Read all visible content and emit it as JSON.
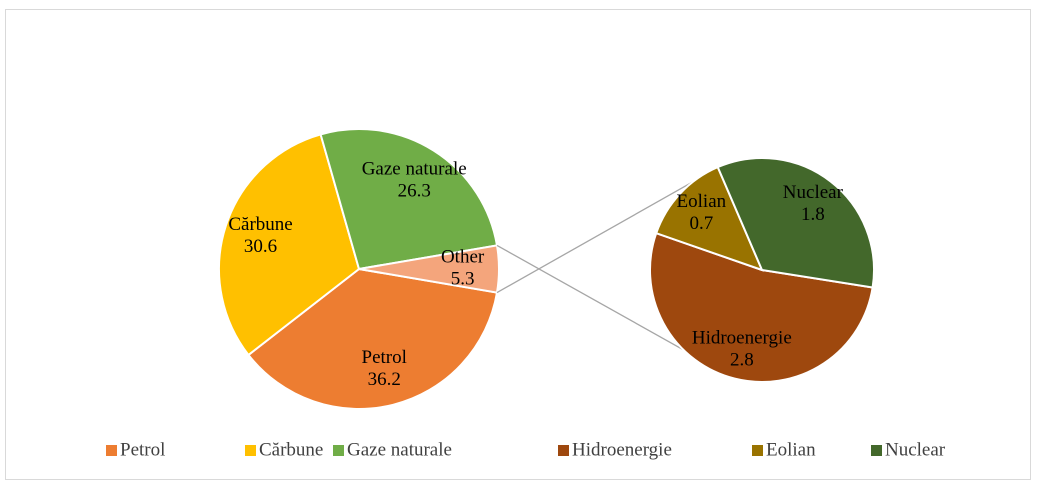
{
  "chart_data": {
    "type": "pie",
    "categories": [
      "Petrol",
      "Cărbune",
      "Gaze naturale",
      "Other"
    ],
    "values": [
      36.2,
      30.6,
      26.3,
      5.3
    ],
    "colors": [
      "#ED7D31",
      "#FFC000",
      "#70AD47",
      "#F4A57C"
    ],
    "breakout": {
      "categories": [
        "Hidroenergie",
        "Eolian",
        "Nuclear"
      ],
      "values": [
        2.8,
        0.7,
        1.8
      ],
      "colors": [
        "#9E480E",
        "#997300",
        "#43682B"
      ]
    }
  }
}
